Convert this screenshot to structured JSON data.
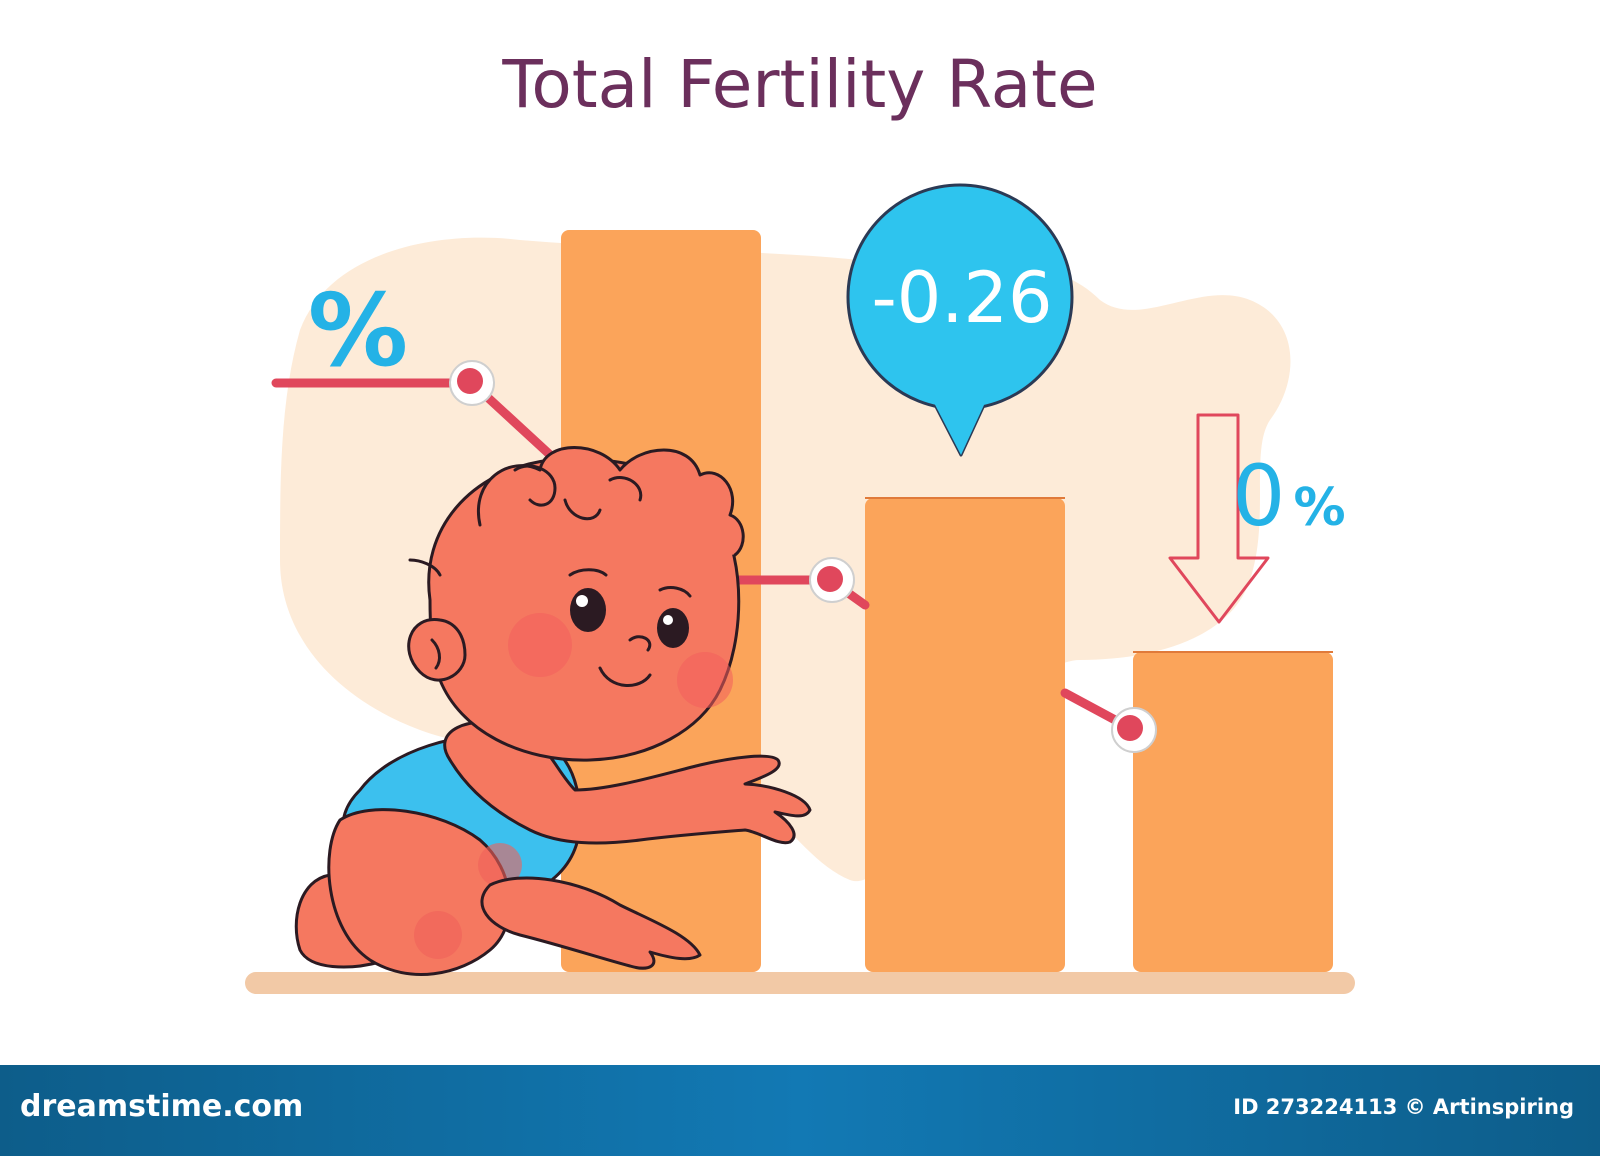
{
  "title": "Total Fertility Rate",
  "labels": {
    "percent": "%",
    "change": "-0.26",
    "zero_percent_digit": "0",
    "zero_percent_sign": "%"
  },
  "footer": {
    "brand": "dreamstime.com",
    "id_text": "ID 273224113 © Artinspiring"
  },
  "colors": {
    "title": "#6b2f5c",
    "bar": "#fba45a",
    "line": "#e0475c",
    "bubble": "#2ec4ee",
    "label": "#24b2e6",
    "blob": "#fdebd8",
    "baby_skin": "#f57860",
    "diaper": "#3cc0ee",
    "footer": "#1279b4"
  },
  "icons": [
    "percent-icon",
    "down-arrow-icon",
    "speech-bubble-icon"
  ]
}
